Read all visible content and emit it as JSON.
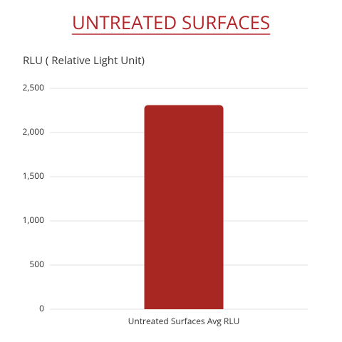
{
  "chart_data": {
    "type": "bar",
    "title": "UNTREATED SURFACES",
    "y_label": "RLU ( Relative Light Unit)",
    "categories": [
      "Untreated Surfaces Avg RLU"
    ],
    "values": [
      2310
    ],
    "color": "#a82722",
    "title_color": "#b3262a",
    "ylim": [
      0,
      2500
    ],
    "yticks": [
      0,
      500,
      {
        "value": 1000,
        "label": "1,000"
      },
      {
        "value": 1500,
        "label": "1,500"
      },
      {
        "value": 2000,
        "label": "2,000"
      },
      {
        "value": 2500,
        "label": "2,500"
      }
    ],
    "grid": true
  }
}
